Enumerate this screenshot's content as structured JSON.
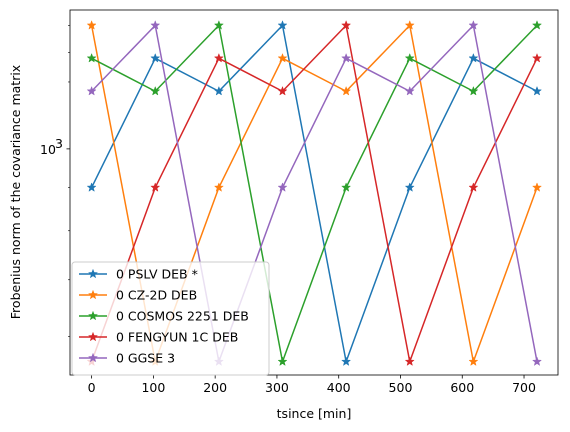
{
  "chart_data": {
    "type": "line",
    "xlabel": "tsince [min]",
    "ylabel": "Frobenius norm of the covariance matrix",
    "xscale": "linear",
    "yscale": "log",
    "xlim": [
      -35,
      755
    ],
    "ylim": [
      540,
      1460
    ],
    "x_ticks": [
      0,
      100,
      200,
      300,
      400,
      500,
      600,
      700
    ],
    "y_major_ticks": [
      1000
    ],
    "y_major_tick_label": "10",
    "y_major_tick_exponent": "3",
    "y_minor_ticks": [
      600,
      700,
      800,
      900,
      1200,
      1300,
      1400
    ],
    "grid": false,
    "legend_position": "lower-left",
    "marker": "star",
    "x": [
      0,
      103,
      206,
      309,
      412,
      515,
      618,
      721
    ],
    "series": [
      {
        "name": "0 PSLV DEB *",
        "color": "#1f77b4",
        "values": [
          900,
          1280,
          1170,
          1400,
          560,
          900,
          1280,
          1170
        ]
      },
      {
        "name": "0 CZ-2D DEB",
        "color": "#ff7f0e",
        "values": [
          1400,
          560,
          900,
          1280,
          1170,
          1400,
          560,
          900
        ]
      },
      {
        "name": "0 COSMOS 2251 DEB",
        "color": "#2ca02c",
        "values": [
          1280,
          1170,
          1400,
          560,
          900,
          1280,
          1170,
          1400
        ]
      },
      {
        "name": "0 FENGYUN 1C DEB",
        "color": "#d62728",
        "values": [
          560,
          900,
          1280,
          1170,
          1400,
          560,
          900,
          1280
        ]
      },
      {
        "name": "0 GGSE 3",
        "color": "#9467bd",
        "values": [
          1170,
          1400,
          560,
          900,
          1280,
          1170,
          1400,
          560
        ]
      }
    ]
  }
}
